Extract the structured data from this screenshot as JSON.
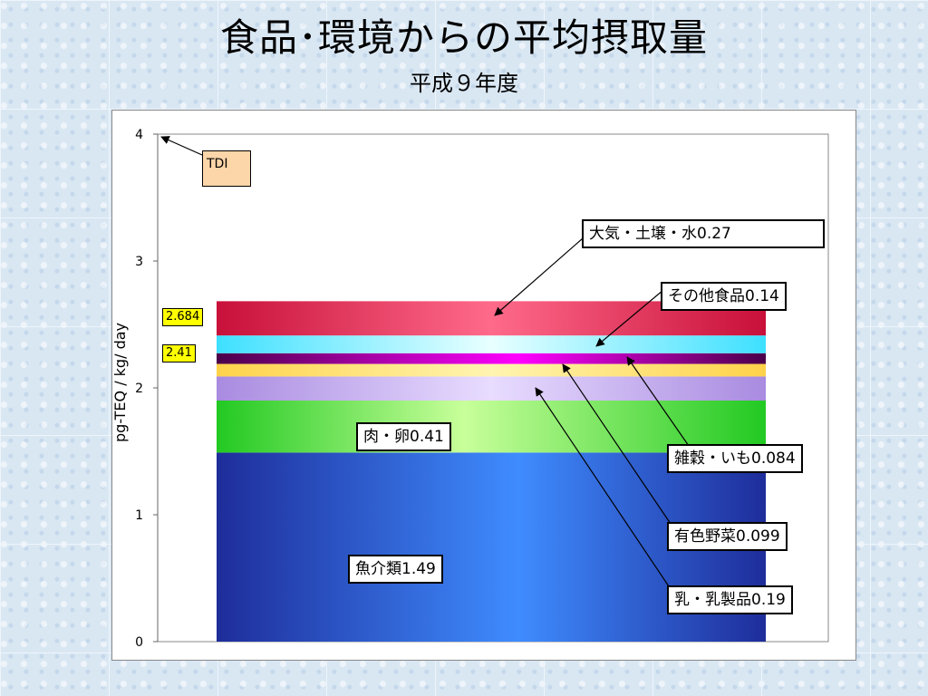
{
  "title": "食品･環境からの平均摂取量",
  "subtitle": "平成９年度",
  "colors": {
    "fish": "#2c4fcf",
    "meat": "#2fd02f",
    "mixed_grain": "#8b008b",
    "colored_veg": "#ffd85a",
    "dairy": "#b89ae8",
    "other_food": "#5fe8f0",
    "environment": "#d42f4f",
    "tdi_box": "#fcd5a8",
    "value_label": "#ffff00"
  },
  "chart_data": {
    "type": "bar",
    "stacked": true,
    "categories": [
      ""
    ],
    "ylabel": "pg-TEQ / kg/ day",
    "ylim": [
      0,
      4
    ],
    "yticks": [
      "0",
      "1",
      "2",
      "3",
      "4"
    ],
    "series": [
      {
        "name": "魚介類",
        "values": [
          1.49
        ],
        "label": "魚介類1.49"
      },
      {
        "name": "肉・卵",
        "values": [
          0.41
        ],
        "label": "肉・卵0.41"
      },
      {
        "name": "乳・乳製品",
        "values": [
          0.19
        ],
        "label": "乳・乳製品0.19"
      },
      {
        "name": "有色野菜",
        "values": [
          0.099
        ],
        "label": "有色野菜0.099"
      },
      {
        "name": "雑穀・いも",
        "values": [
          0.084
        ],
        "label": "雑穀・いも0.084"
      },
      {
        "name": "その他食品",
        "values": [
          0.14
        ],
        "label": "その他食品0.14"
      },
      {
        "name": "大気・土壌・水",
        "values": [
          0.27
        ],
        "label": "大気・土壌・水0.27"
      }
    ],
    "annotations": {
      "tdi": {
        "label": "TDI",
        "value": 4
      },
      "total_food_label": "2.41",
      "total_label": "2.684"
    }
  }
}
